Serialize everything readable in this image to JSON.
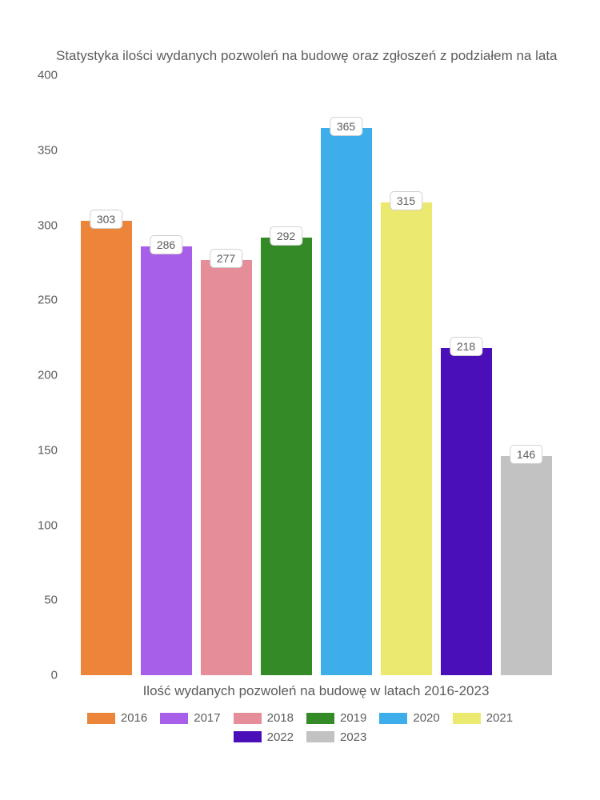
{
  "chart": {
    "type": "bar",
    "title": "Statystyka ilości wydanych pozwoleń na budowę oraz zgłoszeń z podziałem na lata",
    "xlabel": "Ilość wydanych pozwoleń na budowę w latach 2016-2023",
    "ylim_max": 400,
    "yticks": [
      0,
      50,
      100,
      150,
      200,
      250,
      300,
      350,
      400
    ],
    "background_color": "#ffffff",
    "text_color": "#5c5c5e",
    "title_fontsize": 17,
    "label_fontsize": 17,
    "tick_fontsize": 15,
    "value_label_fontsize": 14,
    "bar_width_ratio": 0.88,
    "value_label_bg": "#ffffff",
    "value_label_border": "#d0d0d0",
    "value_label_radius": 5,
    "series": [
      {
        "year": "2016",
        "value": 303,
        "color": "#ec8539"
      },
      {
        "year": "2017",
        "value": 286,
        "color": "#a75ee8"
      },
      {
        "year": "2018",
        "value": 277,
        "color": "#e58d99"
      },
      {
        "year": "2019",
        "value": 292,
        "color": "#358a28"
      },
      {
        "year": "2020",
        "value": 365,
        "color": "#3daeea"
      },
      {
        "year": "2021",
        "value": 315,
        "color": "#ebe96f"
      },
      {
        "year": "2022",
        "value": 218,
        "color": "#4b0fba"
      },
      {
        "year": "2023",
        "value": 146,
        "color": "#c2c2c2"
      }
    ]
  }
}
